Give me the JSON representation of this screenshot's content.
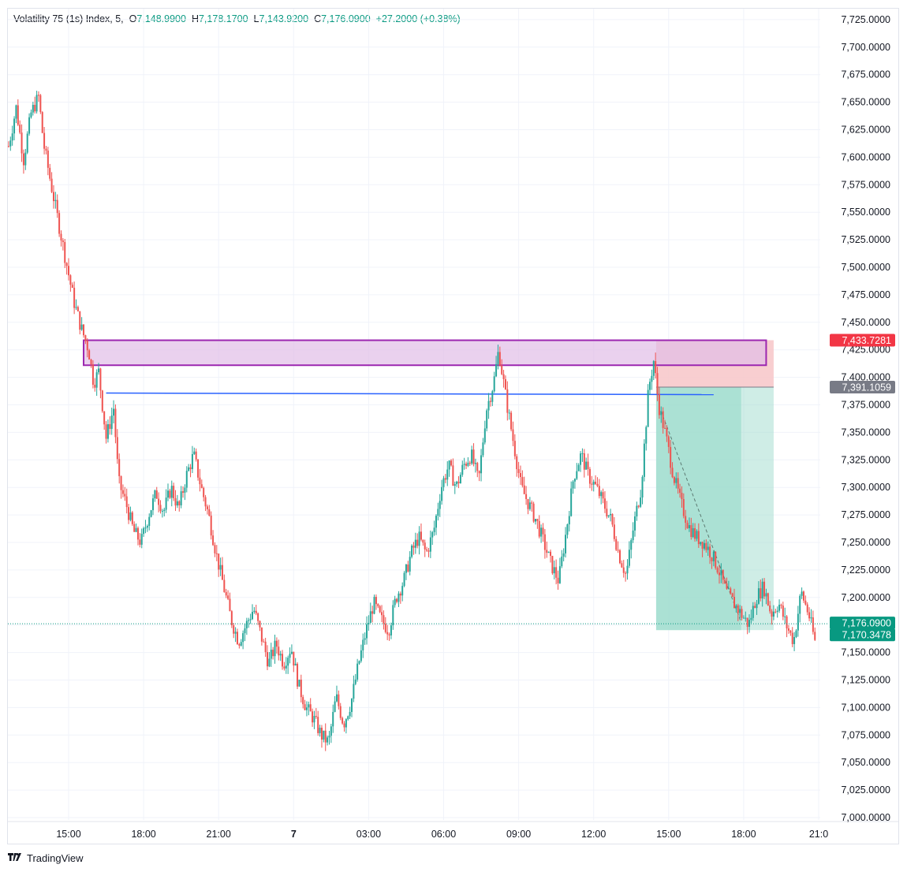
{
  "legend": {
    "symbol": "Volatility 75 (1s) Index, 5,",
    "open_label": "O",
    "open": "7,148.9900",
    "high_label": "H",
    "high": "7,178.1700",
    "low_label": "L",
    "low": "7,143.9200",
    "close_label": "C",
    "close": "7,176.0900",
    "change": "+27.2000 (+0.38%)"
  },
  "branding": {
    "name": "TradingView",
    "logo_icon": "tradingview-logo-icon"
  },
  "colors": {
    "up": "#26a69a",
    "down": "#ef5350",
    "grid": "#f0f3fa",
    "zone_stroke": "#9c27b0",
    "zone_fill": "#e1bee7",
    "line": "#2962ff",
    "stop_fill": "#f7c6c8",
    "target_fill": "#9fdccd",
    "tag_red": "#f23645",
    "tag_gray": "#787b86",
    "tag_green": "#089981"
  },
  "chart_data": {
    "type": "candlestick",
    "symbol": "Volatility 75 (1s) Index",
    "interval": "5",
    "ylim": [
      7000,
      7735
    ],
    "y_ticks": [
      "7,725.0000",
      "7,700.0000",
      "7,675.0000",
      "7,650.0000",
      "7,625.0000",
      "7,600.0000",
      "7,575.0000",
      "7,550.0000",
      "7,525.0000",
      "7,500.0000",
      "7,475.0000",
      "7,450.0000",
      "7,425.0000",
      "7,400.0000",
      "7,375.0000",
      "7,350.0000",
      "7,325.0000",
      "7,300.0000",
      "7,275.0000",
      "7,250.0000",
      "7,225.0000",
      "7,200.0000",
      "7,175.0000",
      "7,150.0000",
      "7,125.0000",
      "7,100.0000",
      "7,075.0000",
      "7,050.0000",
      "7,025.0000",
      "7,000.0000"
    ],
    "y_tick_values": [
      7725,
      7700,
      7675,
      7650,
      7625,
      7600,
      7575,
      7550,
      7525,
      7500,
      7475,
      7450,
      7425,
      7400,
      7375,
      7350,
      7325,
      7300,
      7275,
      7250,
      7225,
      7200,
      7175,
      7150,
      7125,
      7100,
      7075,
      7050,
      7025,
      7000
    ],
    "x_ticks": [
      {
        "label": "15:00",
        "t": 15
      },
      {
        "label": "18:00",
        "t": 18
      },
      {
        "label": "21:00",
        "t": 21
      },
      {
        "label": "7",
        "t": 24,
        "bold": true
      },
      {
        "label": "03:00",
        "t": 27
      },
      {
        "label": "06:00",
        "t": 30
      },
      {
        "label": "09:00",
        "t": 33
      },
      {
        "label": "12:00",
        "t": 36
      },
      {
        "label": "15:00",
        "t": 39
      },
      {
        "label": "18:00",
        "t": 42
      },
      {
        "label": "21:0",
        "t": 45
      }
    ],
    "x_range_hours": [
      12.6,
      45.6
    ],
    "price_path": [
      [
        12.6,
        7610
      ],
      [
        12.9,
        7645
      ],
      [
        13.2,
        7598
      ],
      [
        13.5,
        7640
      ],
      [
        13.8,
        7655
      ],
      [
        14.0,
        7612
      ],
      [
        14.3,
        7575
      ],
      [
        14.6,
        7540
      ],
      [
        14.9,
        7505
      ],
      [
        15.2,
        7470
      ],
      [
        15.5,
        7445
      ],
      [
        15.8,
        7425
      ],
      [
        16.0,
        7395
      ],
      [
        16.2,
        7405
      ],
      [
        16.5,
        7345
      ],
      [
        16.8,
        7372
      ],
      [
        17.0,
        7305
      ],
      [
        17.3,
        7285
      ],
      [
        17.6,
        7260
      ],
      [
        17.9,
        7250
      ],
      [
        18.2,
        7275
      ],
      [
        18.5,
        7295
      ],
      [
        18.8,
        7278
      ],
      [
        19.1,
        7300
      ],
      [
        19.4,
        7280
      ],
      [
        19.7,
        7310
      ],
      [
        20.0,
        7330
      ],
      [
        20.3,
        7300
      ],
      [
        20.6,
        7275
      ],
      [
        20.9,
        7240
      ],
      [
        21.2,
        7210
      ],
      [
        21.5,
        7180
      ],
      [
        21.8,
        7160
      ],
      [
        22.1,
        7175
      ],
      [
        22.4,
        7190
      ],
      [
        22.7,
        7165
      ],
      [
        23.0,
        7140
      ],
      [
        23.3,
        7158
      ],
      [
        23.6,
        7140
      ],
      [
        23.9,
        7155
      ],
      [
        24.2,
        7120
      ],
      [
        24.5,
        7100
      ],
      [
        24.8,
        7090
      ],
      [
        25.1,
        7075
      ],
      [
        25.4,
        7068
      ],
      [
        25.7,
        7110
      ],
      [
        26.0,
        7085
      ],
      [
        26.3,
        7105
      ],
      [
        26.6,
        7140
      ],
      [
        26.9,
        7170
      ],
      [
        27.2,
        7195
      ],
      [
        27.5,
        7180
      ],
      [
        27.8,
        7170
      ],
      [
        28.1,
        7200
      ],
      [
        28.4,
        7215
      ],
      [
        28.7,
        7240
      ],
      [
        29.0,
        7255
      ],
      [
        29.3,
        7240
      ],
      [
        29.6,
        7260
      ],
      [
        29.9,
        7300
      ],
      [
        30.2,
        7320
      ],
      [
        30.5,
        7300
      ],
      [
        30.8,
        7320
      ],
      [
        31.1,
        7330
      ],
      [
        31.4,
        7305
      ],
      [
        31.7,
        7370
      ],
      [
        32.0,
        7395
      ],
      [
        32.2,
        7425
      ],
      [
        32.5,
        7380
      ],
      [
        32.8,
        7340
      ],
      [
        33.1,
        7300
      ],
      [
        33.4,
        7285
      ],
      [
        33.7,
        7270
      ],
      [
        34.0,
        7250
      ],
      [
        34.3,
        7230
      ],
      [
        34.6,
        7215
      ],
      [
        34.9,
        7260
      ],
      [
        35.2,
        7310
      ],
      [
        35.5,
        7330
      ],
      [
        35.8,
        7310
      ],
      [
        36.1,
        7300
      ],
      [
        36.4,
        7285
      ],
      [
        36.7,
        7270
      ],
      [
        37.0,
        7240
      ],
      [
        37.3,
        7220
      ],
      [
        37.6,
        7265
      ],
      [
        37.9,
        7300
      ],
      [
        38.2,
        7390
      ],
      [
        38.4,
        7415
      ],
      [
        38.6,
        7375
      ],
      [
        38.9,
        7345
      ],
      [
        39.2,
        7310
      ],
      [
        39.5,
        7285
      ],
      [
        39.8,
        7265
      ],
      [
        40.1,
        7255
      ],
      [
        40.4,
        7250
      ],
      [
        40.7,
        7240
      ],
      [
        41.0,
        7225
      ],
      [
        41.3,
        7205
      ],
      [
        41.6,
        7195
      ],
      [
        41.9,
        7185
      ],
      [
        42.2,
        7175
      ],
      [
        42.5,
        7200
      ],
      [
        42.8,
        7210
      ],
      [
        43.1,
        7185
      ],
      [
        43.4,
        7195
      ],
      [
        43.7,
        7175
      ],
      [
        44.0,
        7160
      ],
      [
        44.3,
        7205
      ],
      [
        44.6,
        7185
      ],
      [
        44.9,
        7155
      ]
    ],
    "annotations": {
      "supply_zone": {
        "price_top": 7433.7,
        "price_bottom": 7411,
        "t_start": 15.6,
        "t_end": 42.9
      },
      "horizontal_line": {
        "price": 7385,
        "t_start": 16.5,
        "t_end": 40.8
      },
      "short_position": {
        "entry": 7391.1059,
        "stop": 7433.7281,
        "target": 7170.3478,
        "t_start": 38.5,
        "t_end": 43.2,
        "t_filled": 41.9
      },
      "current_price": 7176.09
    },
    "price_tags": {
      "stop": "7,433.7281",
      "entry": "7,391.1059",
      "current": "7,176.0900",
      "target": "7,170.3478"
    }
  }
}
